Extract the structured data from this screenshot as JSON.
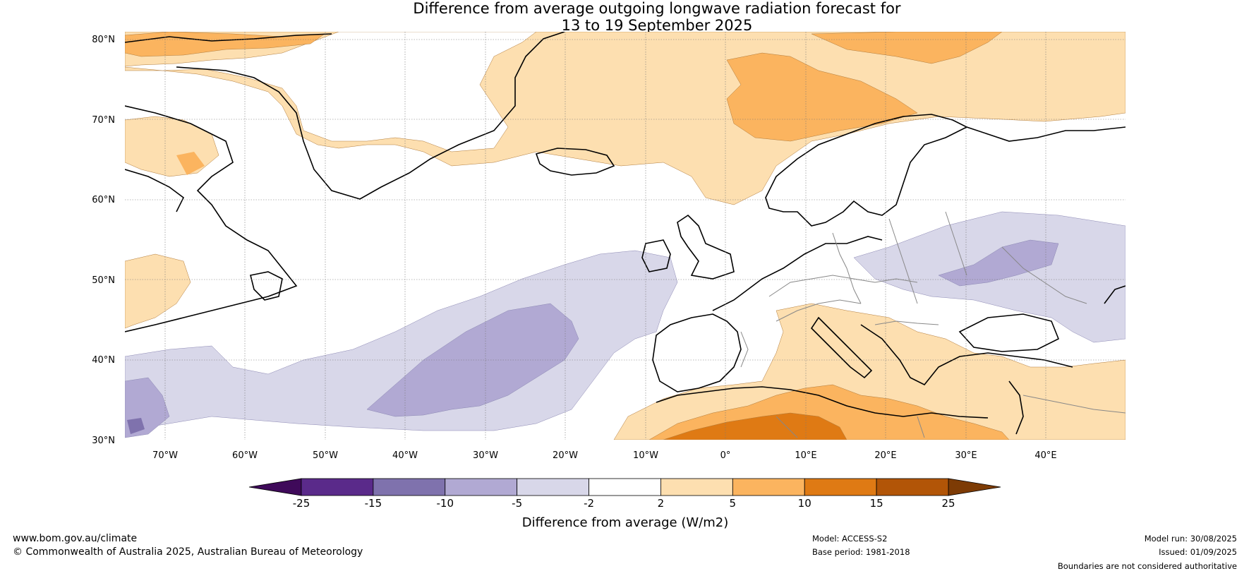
{
  "title": {
    "line1": "Difference from average outgoing longwave radiation forecast for",
    "line2": "13 to 19 September 2025"
  },
  "map": {
    "lon_range": [
      -75,
      50
    ],
    "lat_range": [
      30,
      81
    ],
    "lat_ticks": [
      "30°N",
      "40°N",
      "50°N",
      "60°N",
      "70°N",
      "80°N"
    ],
    "lon_ticks": [
      "70°W",
      "60°W",
      "50°W",
      "40°W",
      "30°W",
      "20°W",
      "10°W",
      "0°",
      "10°E",
      "20°E",
      "30°E",
      "40°E"
    ]
  },
  "colorbar": {
    "title": "Difference from average (W/m2)",
    "labels": [
      "-25",
      "-15",
      "-10",
      "-5",
      "-2",
      "2",
      "5",
      "10",
      "15",
      "25"
    ],
    "colors": [
      "#3f0a5a",
      "#5a2a8a",
      "#7f72ad",
      "#b1a9d3",
      "#d8d7e9",
      "#ffffff",
      "#fddfb0",
      "#fbb45f",
      "#df7a14",
      "#b25507",
      "#7d3b05"
    ]
  },
  "footer": {
    "website": "www.bom.gov.au/climate",
    "copyright": "© Commonwealth of Australia 2025, Australian Bureau of Meteorology",
    "model": "Model: ACCESS-S2",
    "base_period": "Base period: 1981-2018",
    "model_run": "Model run: 30/08/2025",
    "issued": "Issued: 01/09/2025",
    "disclaimer": "Boundaries are not considered authoritative"
  }
}
